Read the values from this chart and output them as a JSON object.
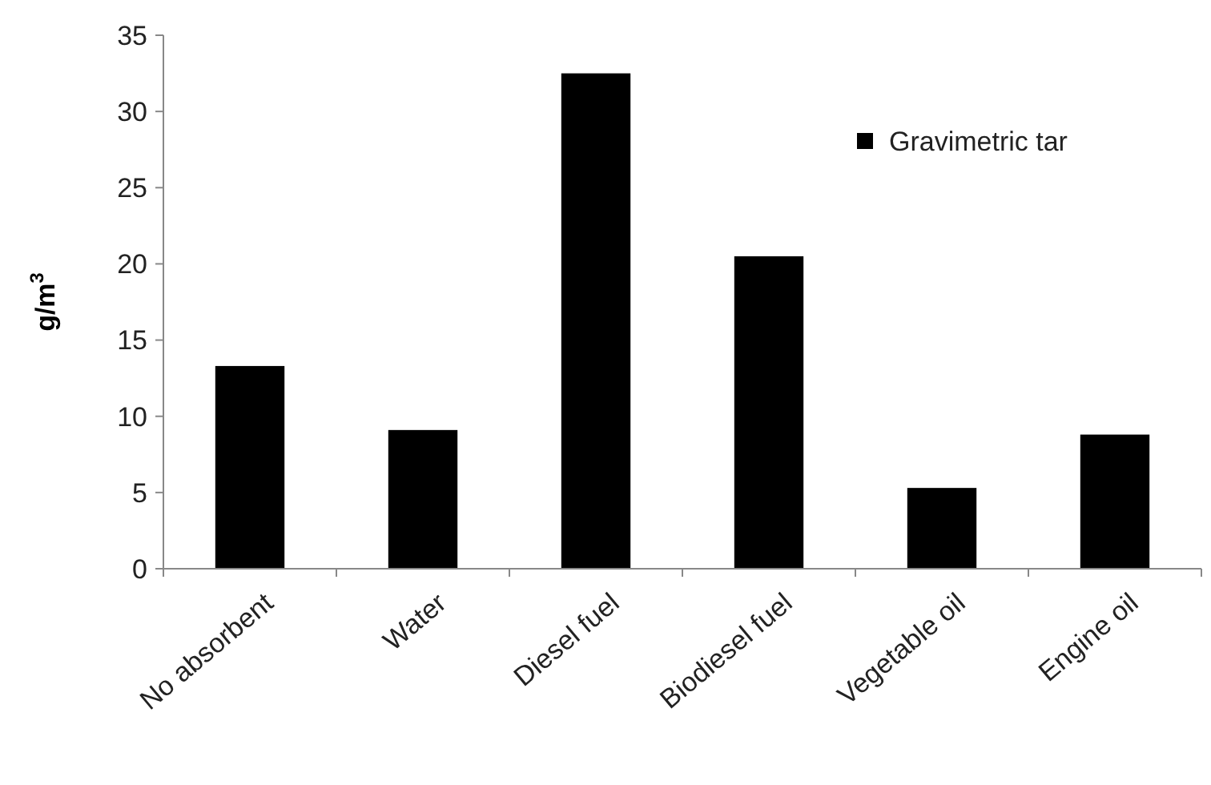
{
  "chart_data": {
    "type": "bar",
    "ylabel": "g/m$^{3}$",
    "categories": [
      "No absorbent",
      "Water",
      "Diesel fuel",
      "Biodiesel fuel",
      "Vegetable oil",
      "Engine oil"
    ],
    "series": [
      {
        "name": "Gravimetric tar",
        "color": "#000000",
        "values": [
          13.3,
          9.1,
          32.5,
          20.5,
          5.3,
          8.8
        ]
      }
    ],
    "ylim": [
      0,
      35
    ],
    "yticks": [
      0,
      5,
      10,
      15,
      20,
      25,
      30,
      35
    ],
    "grid": false,
    "legend": "top right"
  }
}
